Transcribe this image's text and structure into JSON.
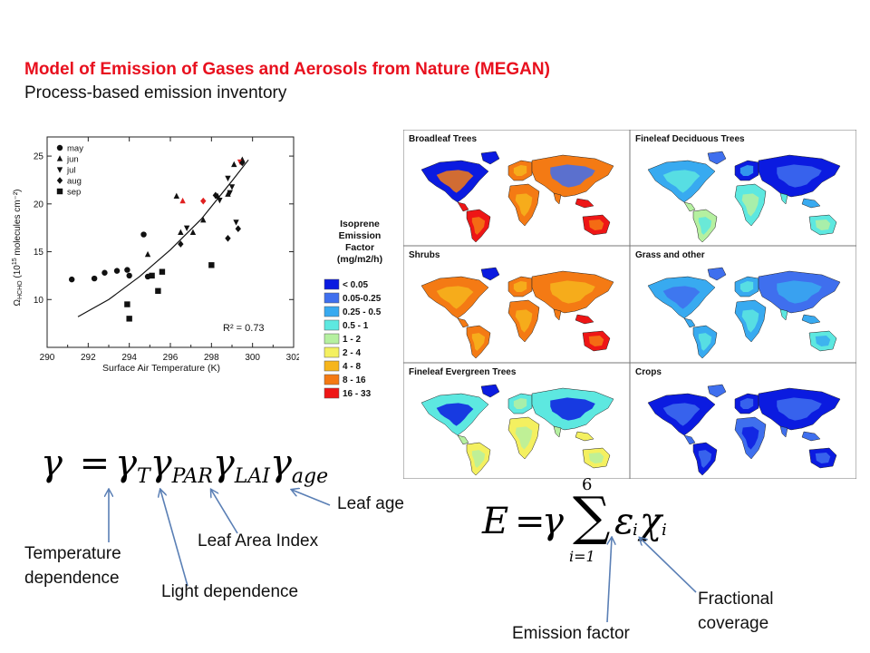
{
  "header": {
    "title": "Model of Emission of Gases and Aerosols from Nature (MEGAN)",
    "subtitle": "Process-based emission inventory"
  },
  "scatter": {
    "ylabel": "Ω",
    "ylabel_sub": "HCHO",
    "ylabel_rest": " (10",
    "ylabel_exp": "15",
    "ylabel_units": " molecules cm⁻²)",
    "xlabel": "Surface Air Temperature (K)",
    "r2": "R² = 0.73",
    "legend": [
      {
        "label": "may",
        "marker": "circle"
      },
      {
        "label": "jun",
        "marker": "triangle-up"
      },
      {
        "label": "jul",
        "marker": "triangle-down"
      },
      {
        "label": "aug",
        "marker": "diamond"
      },
      {
        "label": "sep",
        "marker": "square"
      }
    ]
  },
  "chart_data": {
    "type": "scatter",
    "title": "",
    "xlabel": "Surface Air Temperature (K)",
    "ylabel": "ΩHCHO (10^15 molecules cm^-2)",
    "xlim": [
      290,
      302
    ],
    "ylim": [
      5,
      27
    ],
    "xticks": [
      "290",
      "292",
      "294",
      "296",
      "298",
      "300",
      "302"
    ],
    "yticks": [
      "10",
      "15",
      "20",
      "25"
    ],
    "grid": false,
    "legend_position": "top-left",
    "annotation": "R² = 0.73",
    "series": [
      {
        "name": "may",
        "marker": "circle",
        "points": [
          [
            291.2,
            12.1
          ],
          [
            292.3,
            12.2
          ],
          [
            292.8,
            12.8
          ],
          [
            293.4,
            13.0
          ],
          [
            293.9,
            13.1
          ],
          [
            294.0,
            12.5
          ],
          [
            294.7,
            16.8
          ],
          [
            294.9,
            12.4
          ]
        ]
      },
      {
        "name": "jun",
        "marker": "triangle-up",
        "points": [
          [
            294.9,
            14.7
          ],
          [
            296.3,
            20.8
          ],
          [
            296.5,
            17.0
          ],
          [
            296.6,
            20.3
          ],
          [
            297.6,
            18.3
          ],
          [
            298.3,
            20.8
          ],
          [
            298.8,
            21.0
          ],
          [
            299.1,
            24.1
          ],
          [
            299.5,
            24.6
          ],
          [
            297.1,
            17.0
          ]
        ]
      },
      {
        "name": "jul",
        "marker": "triangle-down",
        "points": [
          [
            296.8,
            17.5
          ],
          [
            298.4,
            20.4
          ],
          [
            298.8,
            22.7
          ],
          [
            299.0,
            21.8
          ],
          [
            299.4,
            24.4
          ],
          [
            299.2,
            18.1
          ],
          [
            298.9,
            21.2
          ]
        ]
      },
      {
        "name": "aug",
        "marker": "diamond",
        "points": [
          [
            297.6,
            20.3
          ],
          [
            298.2,
            20.9
          ],
          [
            298.8,
            16.4
          ],
          [
            299.3,
            17.4
          ],
          [
            299.5,
            24.3
          ],
          [
            296.5,
            15.8
          ]
        ]
      },
      {
        "name": "sep",
        "marker": "square",
        "points": [
          [
            293.9,
            9.5
          ],
          [
            294.0,
            8.0
          ],
          [
            295.1,
            12.5
          ],
          [
            295.4,
            10.9
          ],
          [
            295.6,
            12.9
          ],
          [
            298.0,
            13.6
          ]
        ]
      }
    ],
    "highlight_color": "#e02020",
    "fit": {
      "type": "polynomial",
      "points": [
        [
          291.5,
          8.2
        ],
        [
          293,
          10.0
        ],
        [
          294.5,
          12.4
        ],
        [
          296,
          15.2
        ],
        [
          297.5,
          18.4
        ],
        [
          299,
          22.4
        ],
        [
          299.8,
          24.6
        ]
      ]
    }
  },
  "maps": {
    "panels": [
      {
        "label": "Broadleaf Trees",
        "theme": "warm"
      },
      {
        "label": "Fineleaf Deciduous Trees",
        "theme": "cool"
      },
      {
        "label": "Shrubs",
        "theme": "warm2"
      },
      {
        "label": "Grass and other",
        "theme": "cool2"
      },
      {
        "label": "Fineleaf Evergreen Trees",
        "theme": "mixed"
      },
      {
        "label": "Crops",
        "theme": "deep"
      }
    ]
  },
  "legend": {
    "title_lines": [
      "Isoprene",
      "Emission",
      "Factor",
      "(mg/m2/h)"
    ],
    "items": [
      {
        "label": "< 0.05",
        "color": "#0b1be0"
      },
      {
        "label": "0.05-0.25",
        "color": "#3f6fee"
      },
      {
        "label": "0.25 - 0.5",
        "color": "#38aaf0"
      },
      {
        "label": "0.5 - 1",
        "color": "#5de8e0"
      },
      {
        "label": "1 - 2",
        "color": "#b5f0a0"
      },
      {
        "label": "2 - 4",
        "color": "#f4f060"
      },
      {
        "label": "4 - 8",
        "color": "#f6b51c"
      },
      {
        "label": "8 - 16",
        "color": "#f47a14"
      },
      {
        "label": "16 - 33",
        "color": "#ee1616"
      }
    ]
  },
  "labels": {
    "leaf_age": "Leaf age",
    "leaf_area_index": "Leaf Area Index",
    "temperature_dependence_1": "Temperature",
    "temperature_dependence_2": "dependence",
    "light_dependence": "Light dependence",
    "emission_factor": "Emission factor",
    "fractional_coverage_1": "Fractional",
    "fractional_coverage_2": "coverage"
  },
  "equations": {
    "gamma": "γ",
    "equals": "=",
    "T": "T",
    "PAR": "PAR",
    "LAI": "LAI",
    "age": "age",
    "E": "E",
    "sum_upper": "6",
    "sum_lower": "i=1",
    "sigma": "∑",
    "eps": "ε",
    "chi": "χ",
    "i": "i"
  },
  "colors": {
    "title": "#e8101e",
    "arrow": "#5a7fb5"
  }
}
